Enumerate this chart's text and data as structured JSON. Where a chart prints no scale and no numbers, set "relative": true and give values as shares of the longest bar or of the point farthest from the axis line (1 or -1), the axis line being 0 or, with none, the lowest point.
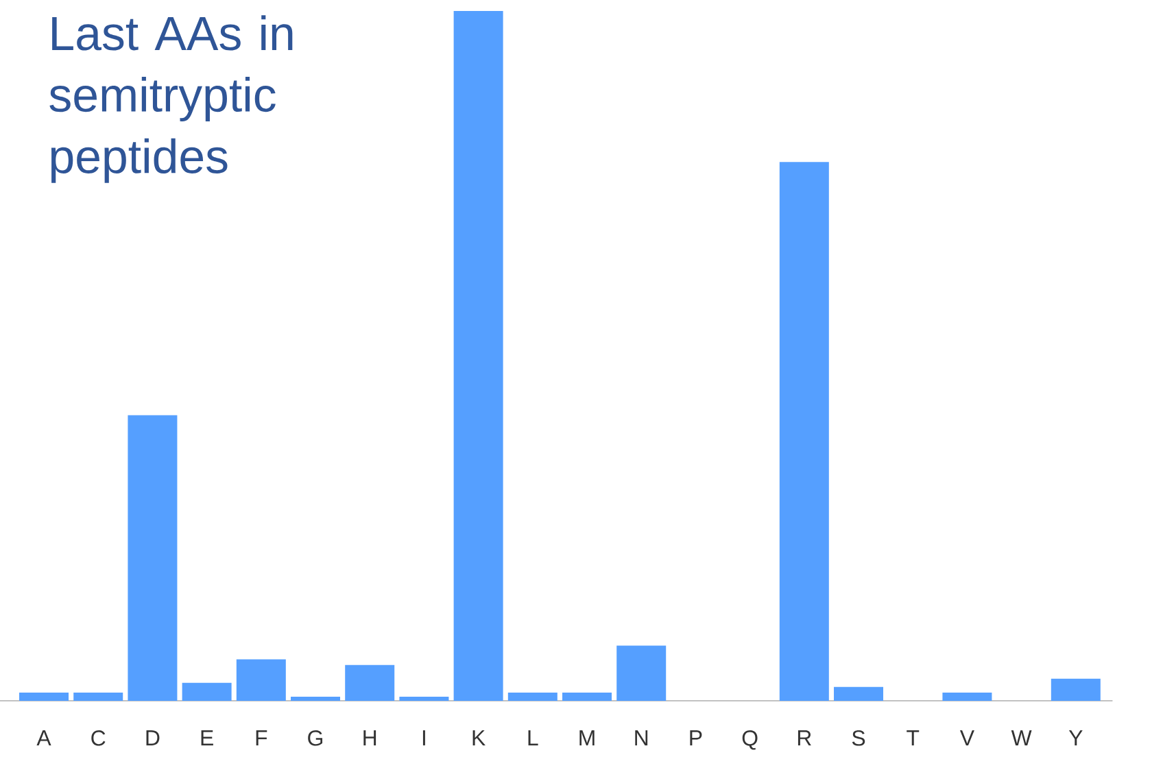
{
  "chart_data": {
    "type": "bar",
    "relative": true,
    "title": "Last AAs in semitryptic peptides",
    "categories": [
      "A",
      "C",
      "D",
      "E",
      "F",
      "G",
      "H",
      "I",
      "K",
      "L",
      "M",
      "N",
      "P",
      "Q",
      "R",
      "S",
      "T",
      "V",
      "W",
      "Y"
    ],
    "values": [
      0.012,
      0.012,
      0.414,
      0.026,
      0.06,
      0.006,
      0.052,
      0.006,
      1,
      0.012,
      0.012,
      0.08,
      0,
      0,
      0.781,
      0.02,
      0,
      0.012,
      0,
      0.032
    ],
    "color": "#559fff"
  }
}
